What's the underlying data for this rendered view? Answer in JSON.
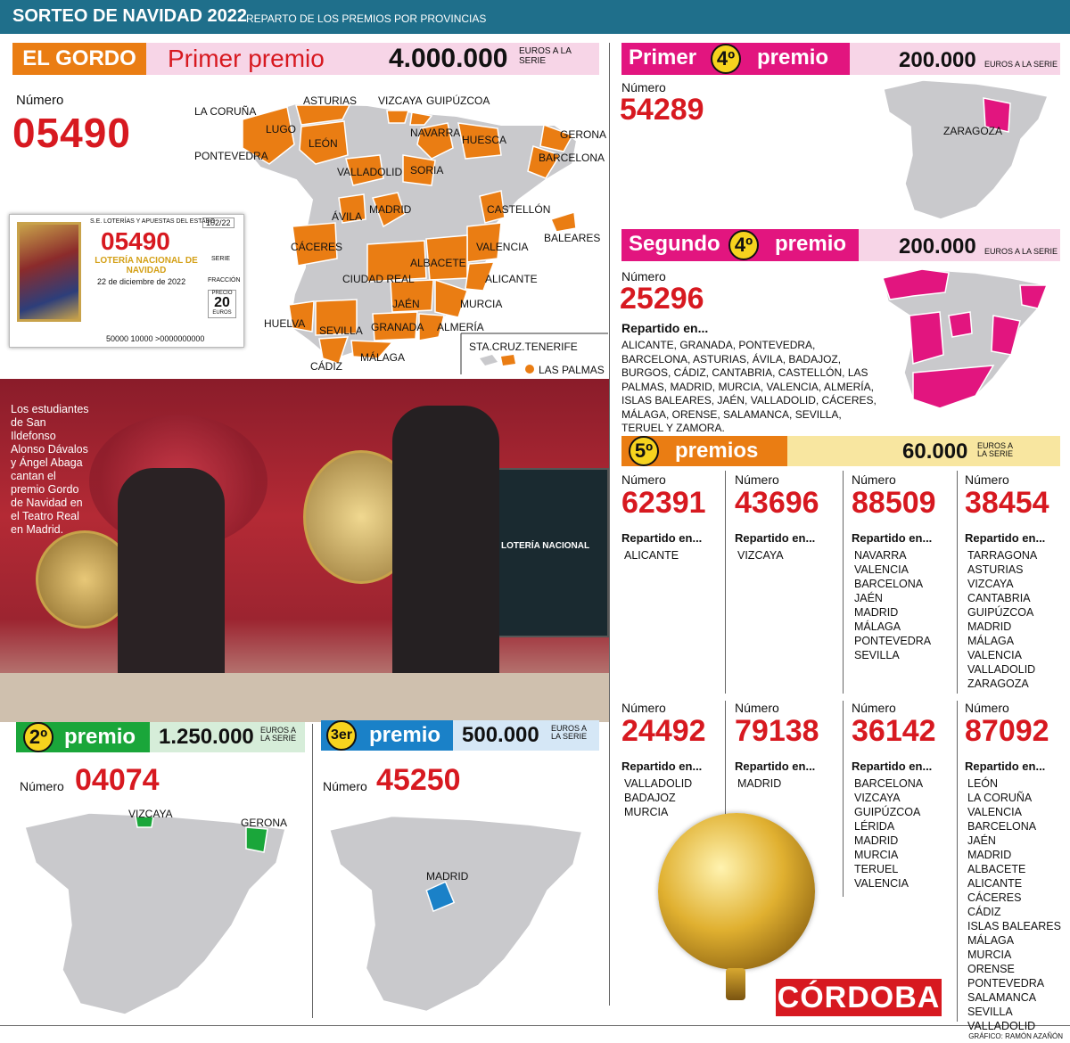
{
  "header": {
    "title": "SORTEO DE NAVIDAD 2022",
    "subtitle": "REPARTO DE LOS PREMIOS POR PROVINCIAS"
  },
  "gordo": {
    "tag": "EL GORDO",
    "label": "Primer premio",
    "amount": "4.000.000",
    "unit": "EUROS A LA SERIE",
    "numero_label": "Número",
    "numero": "05490",
    "ticket": {
      "entity": "S.E. LOTERÍAS Y APUESTAS DEL ESTADO",
      "code": "102/22",
      "number": "05490",
      "name": "LOTERÍA NACIONAL DE NAVIDAD",
      "date": "22 de diciembre de 2022",
      "price_label": "PRECIO",
      "price": "20",
      "price_unit": "EUROS",
      "serie": "SERIE",
      "fraccion": "FRACCIÓN",
      "barcode": "50000 10000 >0000000000"
    },
    "map_labels": [
      "LA CORUÑA",
      "ASTURIAS",
      "VIZCAYA",
      "GUIPÚZCOA",
      "LUGO",
      "NAVARRA",
      "HUESCA",
      "GERONA",
      "PONTEVEDRA",
      "LEÓN",
      "BARCELONA",
      "VALLADOLID",
      "SORIA",
      "ÁVILA",
      "MADRID",
      "CASTELLÓN",
      "BALEARES",
      "CÁCERES",
      "VALENCIA",
      "ALBACETE",
      "CIUDAD REAL",
      "ALICANTE",
      "JAÉN",
      "MURCIA",
      "HUELVA",
      "SEVILLA",
      "GRANADA",
      "ALMERÍA",
      "CÁDIZ",
      "MÁLAGA",
      "STA.CRUZ.TENERIFE",
      "LAS PALMAS"
    ]
  },
  "cuarto1": {
    "tag_a": "Primer",
    "ord": "4º",
    "tag_b": "premio",
    "amount": "200.000",
    "unit": "EUROS A LA SERIE",
    "numero_label": "Número",
    "numero": "54289",
    "map_label": "ZARAGOZA"
  },
  "cuarto2": {
    "tag_a": "Segundo",
    "ord": "4º",
    "tag_b": "premio",
    "amount": "200.000",
    "unit": "EUROS A LA SERIE",
    "numero_label": "Número",
    "numero": "25296",
    "repartido": "Repartido en...",
    "provincias": "ALICANTE, GRANADA, PONTEVEDRA, BARCELONA, ASTURIAS, ÁVILA, BADAJOZ, BURGOS, CÁDIZ, CANTABRIA, CASTELLÓN, LAS PALMAS, MADRID, MURCIA, VALENCIA, ALMERÍA, ISLAS BALEARES, JAÉN, VALLADOLID, CÁCERES, MÁLAGA, ORENSE, SALAMANCA, SEVILLA, TERUEL Y ZAMORA."
  },
  "quintos": {
    "ord": "5º",
    "label": "premios",
    "amount": "60.000",
    "unit": "EUROS A LA SERIE",
    "numero_label": "Número",
    "repartido": "Repartido en...",
    "items": [
      {
        "numero": "62391",
        "provincias": [
          "ALICANTE"
        ]
      },
      {
        "numero": "43696",
        "provincias": [
          "VIZCAYA"
        ]
      },
      {
        "numero": "88509",
        "provincias": [
          "NAVARRA",
          "VALENCIA",
          "BARCELONA",
          "JAÉN",
          "MADRID",
          "MÁLAGA",
          "PONTEVEDRA",
          "SEVILLA"
        ]
      },
      {
        "numero": "38454",
        "provincias": [
          "TARRAGONA",
          "ASTURIAS",
          "VIZCAYA",
          "CANTABRIA",
          "GUIPÚZCOA",
          "MADRID",
          "MÁLAGA",
          "VALENCIA",
          "VALLADOLID",
          "ZARAGOZA"
        ]
      },
      {
        "numero": "24492",
        "provincias": [
          "VALLADOLID",
          "BADAJOZ",
          "MURCIA"
        ]
      },
      {
        "numero": "79138",
        "provincias": [
          "MADRID"
        ]
      },
      {
        "numero": "36142",
        "provincias": [
          "BARCELONA",
          "VIZCAYA",
          "GUIPÚZCOA",
          "LÉRIDA",
          "MADRID",
          "MURCIA",
          "TERUEL",
          "VALENCIA"
        ]
      },
      {
        "numero": "87092",
        "provincias": [
          "LEÓN",
          "LA CORUÑA",
          "VALENCIA",
          "BARCELONA",
          "JAÉN",
          "MADRID",
          "ALBACETE",
          "ALICANTE",
          "CÁCERES",
          "CÁDIZ",
          "ISLAS BALEARES",
          "MÁLAGA",
          "MURCIA",
          "ORENSE",
          "PONTEVEDRA",
          "SALAMANCA",
          "SEVILLA",
          "VALLADOLID"
        ]
      }
    ]
  },
  "segundo": {
    "ord": "2º",
    "label": "premio",
    "amount": "1.250.000",
    "unit": "EUROS A LA SERIE",
    "numero_label": "Número",
    "numero": "04074",
    "map_labels": [
      "VIZCAYA",
      "GERONA"
    ]
  },
  "tercero": {
    "ord": "3er",
    "label": "premio",
    "amount": "500.000",
    "unit": "EUROS A LA SERIE",
    "numero_label": "Número",
    "numero": "45250",
    "map_label": "MADRID"
  },
  "photo": {
    "caption": "Los estudiantes de San Ildefonso Alonso Dávalos y Ángel Abaga cantan el premio Gordo de Navidad en el Teatro Real en Madrid.",
    "screen_text": "LOTERÍA NACIONAL"
  },
  "brand": "CÓRDOBA",
  "credit": "GRÁFICO: RAMÓN AZAÑÓN",
  "colors": {
    "header": "#1f6f8b",
    "orange": "#ea7d13",
    "magenta": "#e2157f",
    "green": "#1aa63a",
    "blue": "#1a81c8",
    "red": "#d71920",
    "yellow": "#f6d31e",
    "map_grey": "#c9c9cc"
  }
}
